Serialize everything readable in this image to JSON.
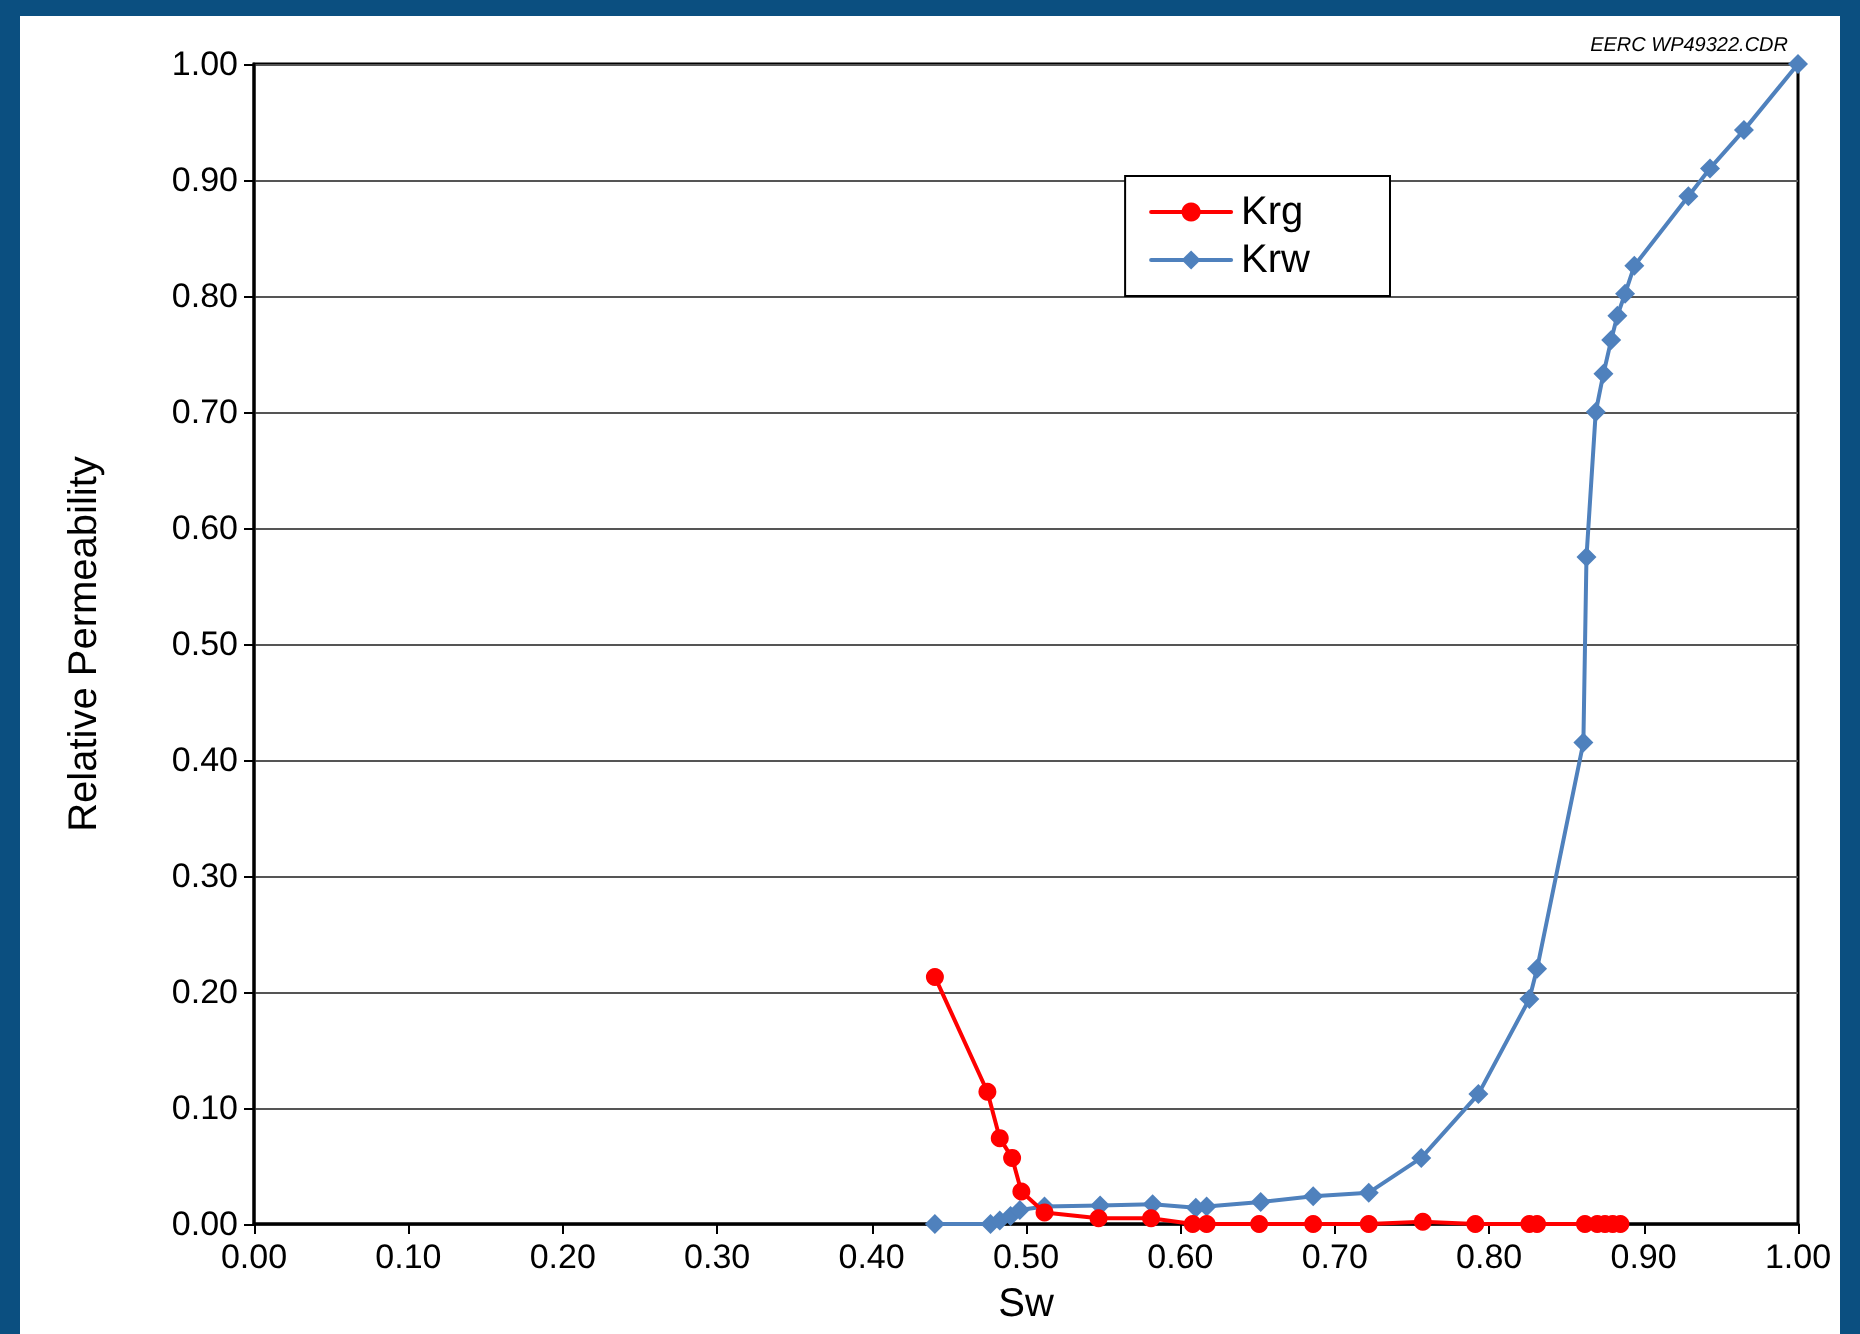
{
  "chart_data": {
    "type": "line",
    "xlabel": "Sw",
    "ylabel": "Relative Permeability",
    "annotations": [
      "EERC WP49322.CDR"
    ],
    "xlim": [
      0,
      1
    ],
    "xticks": [
      {
        "value": 0,
        "label": "0.00"
      },
      {
        "value": 0.1,
        "label": "0.10"
      },
      {
        "value": 0.2,
        "label": "0.20"
      },
      {
        "value": 0.3,
        "label": "0.30"
      },
      {
        "value": 0.4,
        "label": "0.40"
      },
      {
        "value": 0.5,
        "label": "0.50"
      },
      {
        "value": 0.6,
        "label": "0.60"
      },
      {
        "value": 0.7,
        "label": "0.70"
      },
      {
        "value": 0.8,
        "label": "0.80"
      },
      {
        "value": 0.9,
        "label": "0.90"
      },
      {
        "value": 1,
        "label": "1.00"
      }
    ],
    "ylim": [
      0,
      1
    ],
    "yticks": [
      {
        "value": 0,
        "label": "0.00"
      },
      {
        "value": 0.1,
        "label": "0.10"
      },
      {
        "value": 0.2,
        "label": "0.20"
      },
      {
        "value": 0.3,
        "label": "0.30"
      },
      {
        "value": 0.4,
        "label": "0.40"
      },
      {
        "value": 0.5,
        "label": "0.50"
      },
      {
        "value": 0.6,
        "label": "0.60"
      },
      {
        "value": 0.7,
        "label": "0.70"
      },
      {
        "value": 0.8,
        "label": "0.80"
      },
      {
        "value": 0.9,
        "label": "0.90"
      },
      {
        "value": 1,
        "label": "1.00"
      }
    ],
    "grid": "y",
    "legend": "top right",
    "line_style": "solid",
    "series": [
      {
        "name": "Krg",
        "color": "#ff0000",
        "marker": "circle",
        "x": [
          0.441,
          0.475,
          0.483,
          0.491,
          0.497,
          0.512,
          0.547,
          0.581,
          0.608,
          0.617,
          0.651,
          0.686,
          0.722,
          0.757,
          0.791,
          0.826,
          0.831,
          0.862,
          0.87,
          0.875,
          0.88,
          0.885
        ],
        "values": [
          0.213,
          0.114,
          0.074,
          0.057,
          0.028,
          0.01,
          0.005,
          0.005,
          0,
          0,
          0,
          0,
          0,
          0.002,
          0,
          0,
          0,
          0,
          0,
          0,
          0,
          0
        ]
      },
      {
        "name": "Krw",
        "color": "#4f81bd",
        "marker": "diamond",
        "x": [
          0.441,
          0.477,
          0.483,
          0.49,
          0.496,
          0.512,
          0.548,
          0.582,
          0.61,
          0.617,
          0.652,
          0.686,
          0.722,
          0.756,
          0.793,
          0.826,
          0.831,
          0.861,
          0.863,
          0.869,
          0.874,
          0.879,
          0.883,
          0.888,
          0.894,
          0.929,
          0.943,
          0.965,
          1.0
        ],
        "values": [
          0,
          0,
          0.003,
          0.007,
          0.012,
          0.015,
          0.016,
          0.017,
          0.014,
          0.015,
          0.019,
          0.024,
          0.027,
          0.057,
          0.112,
          0.194,
          0.22,
          0.415,
          0.575,
          0.7,
          0.733,
          0.762,
          0.783,
          0.802,
          0.826,
          0.886,
          0.91,
          0.943,
          1.0
        ]
      }
    ]
  }
}
